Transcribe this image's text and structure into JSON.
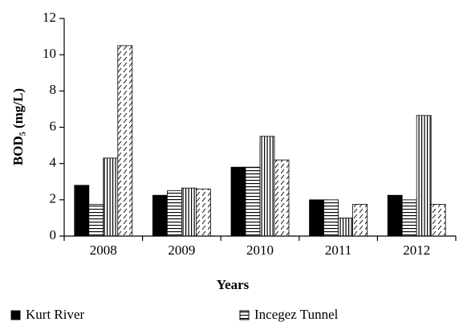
{
  "chart_data": {
    "type": "bar",
    "x_label": "Years",
    "y_label": "BOD₅ (mg/L)",
    "categories": [
      "2008",
      "2009",
      "2010",
      "2011",
      "2012"
    ],
    "series": [
      {
        "name": "Kurt River",
        "color": "#000000",
        "pattern": "solid",
        "values": [
          2.8,
          2.25,
          3.8,
          2.0,
          2.25
        ]
      },
      {
        "name": "Incegez Tunnel",
        "color": "#000000",
        "pattern": "horizontal",
        "values": [
          1.75,
          2.5,
          3.8,
          2.0,
          2.0
        ]
      },
      {
        "color": "#000000",
        "pattern": "vertical",
        "values": [
          4.3,
          2.65,
          5.5,
          1.0,
          6.65
        ]
      },
      {
        "color": "#000000",
        "pattern": "diagonal",
        "values": [
          10.5,
          2.6,
          4.2,
          1.75,
          1.75
        ]
      }
    ],
    "ylim": [
      0,
      12
    ],
    "yticks": [
      0,
      2,
      4,
      6,
      8,
      10,
      12
    ],
    "legend": "bottom"
  }
}
